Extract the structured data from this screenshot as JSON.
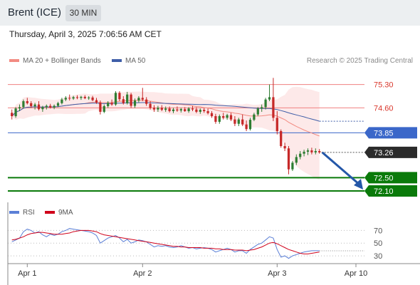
{
  "header": {
    "title": "Brent (ICE)",
    "interval": "30 MIN",
    "timestamp": "Thursday, April 3, 2025 7:06:56 AM CET"
  },
  "legend": {
    "ma20": "MA 20 + Bollinger Bands",
    "ma50": "MA 50",
    "research": "Research © 2025 Trading Central"
  },
  "rsi_legend": {
    "rsi": "RSI",
    "ma9": "9MA"
  },
  "colors": {
    "ma20": "#f28b82",
    "ma50": "#3f5ea8",
    "bollinger_fill": "#fde4e4",
    "up_candle": "#2e7d32",
    "down_candle": "#c62828",
    "resistance": "#f08080",
    "pivot": "#3b67c9",
    "support": "#0a7a0a",
    "current_label": "#2b2b2b",
    "arrow": "#2457a8",
    "rsi": "#5b7fd6",
    "rsi_ma": "#d0021b"
  },
  "chart_data": [
    {
      "type": "candlestick",
      "title": "",
      "x_ticks": [
        "Apr 1",
        "Apr 2",
        "Apr 3",
        "Apr 10"
      ],
      "ylim": [
        71.8,
        75.7
      ],
      "levels": [
        {
          "value": 75.3,
          "label": "75.30",
          "kind": "resistance"
        },
        {
          "value": 74.6,
          "label": "74.60",
          "kind": "resistance"
        },
        {
          "value": 73.85,
          "label": "73.85",
          "kind": "pivot"
        },
        {
          "value": 73.26,
          "label": "73.26",
          "kind": "current"
        },
        {
          "value": 72.5,
          "label": "72.50",
          "kind": "support"
        },
        {
          "value": 72.1,
          "label": "72.10",
          "kind": "support"
        }
      ],
      "ohlc": [
        [
          74.45,
          74.55,
          74.25,
          74.35
        ],
        [
          74.35,
          74.62,
          74.3,
          74.58
        ],
        [
          74.58,
          74.7,
          74.5,
          74.62
        ],
        [
          74.62,
          74.85,
          74.58,
          74.8
        ],
        [
          74.8,
          74.9,
          74.7,
          74.74
        ],
        [
          74.74,
          74.8,
          74.6,
          74.65
        ],
        [
          74.65,
          74.75,
          74.55,
          74.7
        ],
        [
          74.7,
          74.8,
          74.52,
          74.56
        ],
        [
          74.56,
          74.66,
          74.48,
          74.62
        ],
        [
          74.62,
          74.7,
          74.55,
          74.66
        ],
        [
          74.66,
          74.72,
          74.58,
          74.61
        ],
        [
          74.61,
          74.7,
          74.56,
          74.66
        ],
        [
          74.66,
          74.78,
          74.62,
          74.74
        ],
        [
          74.74,
          74.9,
          74.7,
          74.85
        ],
        [
          74.85,
          74.95,
          74.8,
          74.9
        ],
        [
          74.9,
          75.0,
          74.82,
          74.88
        ],
        [
          74.88,
          74.96,
          74.84,
          74.92
        ],
        [
          74.92,
          74.98,
          74.86,
          74.9
        ],
        [
          74.9,
          74.96,
          74.84,
          74.93
        ],
        [
          74.93,
          74.98,
          74.86,
          74.89
        ],
        [
          74.89,
          74.95,
          74.84,
          74.91
        ],
        [
          74.91,
          74.96,
          74.8,
          74.83
        ],
        [
          74.83,
          74.9,
          74.72,
          74.76
        ],
        [
          74.76,
          74.82,
          74.4,
          74.48
        ],
        [
          74.48,
          74.7,
          74.44,
          74.65
        ],
        [
          74.65,
          74.8,
          74.6,
          74.75
        ],
        [
          74.75,
          74.85,
          74.66,
          74.7
        ],
        [
          74.7,
          75.1,
          74.66,
          75.05
        ],
        [
          75.05,
          75.1,
          74.8,
          74.86
        ],
        [
          74.86,
          74.95,
          74.7,
          74.74
        ],
        [
          74.74,
          75.08,
          74.7,
          75.0
        ],
        [
          75.0,
          75.05,
          74.6,
          74.66
        ],
        [
          74.66,
          74.88,
          74.6,
          74.82
        ],
        [
          74.82,
          74.95,
          74.76,
          74.9
        ],
        [
          74.9,
          75.2,
          74.8,
          74.85
        ],
        [
          74.85,
          74.92,
          74.66,
          74.72
        ],
        [
          74.72,
          74.8,
          74.55,
          74.6
        ],
        [
          74.6,
          74.68,
          74.48,
          74.55
        ],
        [
          74.55,
          74.66,
          74.48,
          74.6
        ],
        [
          74.6,
          74.68,
          74.5,
          74.54
        ],
        [
          74.54,
          74.64,
          74.48,
          74.58
        ],
        [
          74.58,
          74.64,
          74.46,
          74.5
        ],
        [
          74.5,
          74.6,
          74.44,
          74.55
        ],
        [
          74.55,
          74.64,
          74.48,
          74.52
        ],
        [
          74.52,
          74.6,
          74.46,
          74.56
        ],
        [
          74.56,
          74.62,
          74.48,
          74.5
        ],
        [
          74.5,
          74.62,
          74.45,
          74.58
        ],
        [
          74.58,
          74.66,
          74.5,
          74.55
        ],
        [
          74.55,
          74.62,
          74.44,
          74.48
        ],
        [
          74.48,
          74.58,
          74.42,
          74.54
        ],
        [
          74.54,
          74.6,
          74.45,
          74.5
        ],
        [
          74.5,
          74.58,
          74.4,
          74.44
        ],
        [
          74.44,
          74.5,
          74.3,
          74.35
        ],
        [
          74.35,
          74.42,
          74.12,
          74.18
        ],
        [
          74.18,
          74.4,
          74.12,
          74.35
        ],
        [
          74.35,
          74.45,
          74.25,
          74.3
        ],
        [
          74.3,
          74.42,
          74.24,
          74.38
        ],
        [
          74.38,
          74.45,
          74.2,
          74.25
        ],
        [
          74.25,
          74.35,
          74.05,
          74.12
        ],
        [
          74.12,
          74.3,
          74.05,
          74.25
        ],
        [
          74.25,
          74.4,
          74.05,
          74.1
        ],
        [
          74.1,
          74.22,
          73.9,
          73.96
        ],
        [
          73.96,
          74.3,
          73.92,
          74.24
        ],
        [
          74.24,
          74.45,
          74.2,
          74.4
        ],
        [
          74.4,
          74.62,
          74.35,
          74.58
        ],
        [
          74.58,
          74.7,
          74.48,
          74.62
        ],
        [
          74.62,
          74.9,
          74.55,
          74.85
        ],
        [
          74.85,
          75.3,
          74.8,
          74.92
        ],
        [
          74.92,
          75.5,
          74.2,
          74.3
        ],
        [
          74.3,
          74.5,
          73.8,
          73.9
        ],
        [
          73.9,
          73.95,
          73.4,
          73.45
        ],
        [
          73.45,
          73.55,
          73.3,
          73.38
        ],
        [
          73.38,
          73.45,
          72.6,
          72.75
        ],
        [
          72.75,
          73.0,
          72.7,
          72.95
        ],
        [
          72.95,
          73.2,
          72.88,
          73.12
        ],
        [
          73.12,
          73.3,
          73.05,
          73.22
        ],
        [
          73.22,
          73.34,
          73.14,
          73.28
        ],
        [
          73.28,
          73.38,
          73.18,
          73.32
        ],
        [
          73.32,
          73.4,
          73.2,
          73.26
        ],
        [
          73.26,
          73.38,
          73.2,
          73.3
        ],
        [
          73.3,
          73.36,
          73.22,
          73.26
        ]
      ]
    },
    {
      "type": "line",
      "title": "",
      "series": [
        {
          "name": "RSI"
        },
        {
          "name": "9MA"
        }
      ],
      "ylim": [
        20,
        85
      ],
      "y_ticks": [
        70,
        50,
        30
      ],
      "rsi": [
        52,
        55,
        58,
        68,
        72,
        70,
        66,
        68,
        63,
        60,
        64,
        62,
        64,
        68,
        70,
        73,
        72,
        71,
        70,
        69,
        68,
        66,
        62,
        50,
        54,
        58,
        60,
        62,
        58,
        52,
        56,
        50,
        52,
        55,
        54,
        52,
        48,
        44,
        46,
        45,
        46,
        44,
        43,
        44,
        46,
        44,
        42,
        43,
        41,
        42,
        43,
        42,
        40,
        36,
        38,
        40,
        42,
        40,
        36,
        38,
        38,
        34,
        40,
        44,
        48,
        50,
        55,
        60,
        58,
        40,
        28,
        30,
        26,
        30,
        32,
        34,
        36,
        37,
        38,
        38,
        38
      ],
      "ma9": [
        55,
        56,
        58,
        60,
        63,
        65,
        66,
        67,
        67,
        66,
        65,
        64,
        64,
        64,
        65,
        66,
        68,
        69,
        70,
        70,
        70,
        69,
        68,
        65,
        63,
        62,
        61,
        60,
        59,
        58,
        57,
        56,
        55,
        54,
        53,
        52,
        51,
        50,
        49,
        48,
        47,
        46,
        45,
        45,
        44,
        44,
        43,
        43,
        43,
        43,
        42,
        42,
        42,
        41,
        41,
        40,
        40,
        40,
        39,
        39,
        39,
        38,
        39,
        40,
        42,
        44,
        47,
        50,
        51,
        49,
        46,
        43,
        40,
        38,
        36,
        34,
        33,
        33,
        34,
        35,
        36
      ]
    }
  ]
}
